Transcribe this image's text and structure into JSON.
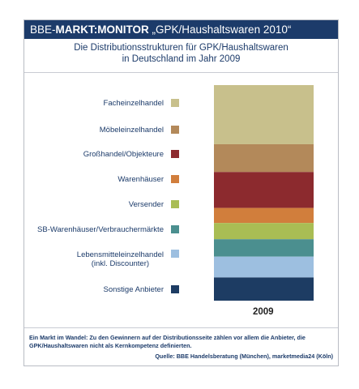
{
  "banner": {
    "prefix": "BBE-",
    "brand": "MARKT:MONITOR",
    "suffix": " „GPK/Haushaltswaren 2010“"
  },
  "subtitle_line1": "Die Distributionsstrukturen für GPK/Haushaltswaren",
  "subtitle_line2": "in Deutschland im Jahr 2009",
  "legend": [
    {
      "line1": "Facheinzelhandel",
      "line2": "",
      "color": "#c8c08c"
    },
    {
      "line1": "Möbeleinzelhandel",
      "line2": "",
      "color": "#b3895a"
    },
    {
      "line1": "Großhandel/Objekteure",
      "line2": "",
      "color": "#8c2a2e"
    },
    {
      "line1": "Warenhäuser",
      "line2": "",
      "color": "#d17e3c"
    },
    {
      "line1": "Versender",
      "line2": "",
      "color": "#a9bd54"
    },
    {
      "line1": "SB-Warenhäuser/Verbrauchermärkte",
      "line2": "",
      "color": "#4b8f8f"
    },
    {
      "line1": "Lebensmitteleinzelhandel",
      "line2": "(inkl. Discounter)",
      "color": "#9dbfe0"
    },
    {
      "line1": "Sonstige Anbieter",
      "line2": "",
      "color": "#1d3c63"
    }
  ],
  "chart_data": {
    "type": "bar",
    "stacked": true,
    "categories": [
      "2009"
    ],
    "series": [
      {
        "name": "Facheinzelhandel",
        "values": [
          25.5
        ]
      },
      {
        "name": "Möbeleinzelhandel",
        "values": [
          12.0
        ]
      },
      {
        "name": "Großhandel/Objekteure",
        "values": [
          15.5
        ]
      },
      {
        "name": "Warenhäuser",
        "values": [
          6.5
        ]
      },
      {
        "name": "Versender",
        "values": [
          7.0
        ]
      },
      {
        "name": "SB-Warenhäuser/Verbrauchermärkte",
        "values": [
          7.5
        ]
      },
      {
        "name": "Lebensmitteleinzelhandel (inkl. Discounter)",
        "values": [
          9.0
        ]
      },
      {
        "name": "Sonstige Anbieter",
        "values": [
          10.0
        ]
      }
    ],
    "ylim": [
      0,
      100
    ],
    "grid": false,
    "legend": "left"
  },
  "note": "Ein Markt im Wandel: Zu den Gewinnern auf der Distributionsseite zählen vor allem die Anbieter, die GPK/Haushaltswaren nicht als Kernkompetenz definierten.",
  "source": "Quelle: BBE Handelsberatung (München), marketmedia24 (Köln)"
}
